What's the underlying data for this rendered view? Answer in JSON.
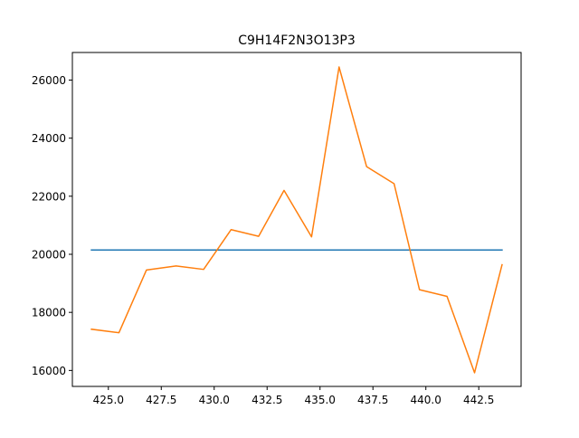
{
  "chart_data": {
    "type": "line",
    "title": "C9H14F2N3O13P3",
    "xlabel": "",
    "ylabel": "",
    "xlim": [
      423.3,
      444.5
    ],
    "ylim": [
      15450,
      26950
    ],
    "x_ticks": [
      425.0,
      427.5,
      430.0,
      432.5,
      435.0,
      437.5,
      440.0,
      442.5
    ],
    "x_tick_labels": [
      "425.0",
      "427.5",
      "430.0",
      "432.5",
      "435.0",
      "437.5",
      "440.0",
      "442.5"
    ],
    "y_ticks": [
      16000,
      18000,
      20000,
      22000,
      24000,
      26000
    ],
    "y_tick_labels": [
      "16000",
      "18000",
      "20000",
      "22000",
      "24000",
      "26000"
    ],
    "grid": false,
    "legend": "none",
    "series": [
      {
        "color": "#1f77b4",
        "x": [
          424.2,
          443.6
        ],
        "y": [
          20150,
          20150
        ]
      },
      {
        "color": "#ff7f0e",
        "x": [
          424.2,
          425.5,
          426.8,
          428.2,
          429.5,
          430.8,
          432.1,
          433.3,
          434.6,
          435.9,
          437.2,
          438.5,
          439.7,
          441.0,
          442.3,
          443.6
        ],
        "y": [
          17420,
          17300,
          19460,
          19600,
          19480,
          20850,
          20620,
          22200,
          20600,
          26450,
          23020,
          22430,
          18780,
          18550,
          15920,
          19640
        ]
      }
    ]
  }
}
